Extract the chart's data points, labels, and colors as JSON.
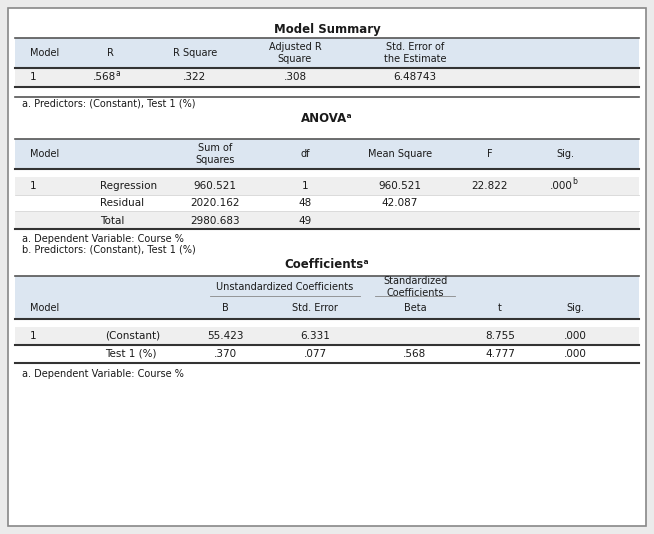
{
  "bg_color": "#ebebeb",
  "table_bg": "#ffffff",
  "header_bg": "#dce6f1",
  "row_shaded": "#efefef",
  "border_color": "#888888",
  "title_fontsize": 8.5,
  "header_fontsize": 7,
  "data_fontsize": 7.5,
  "note_fontsize": 7,
  "model_summary": {
    "title": "Model Summary",
    "note": "a. Predictors: (Constant), Test 1 (%)"
  },
  "anova": {
    "title": "ANOVAᵃ",
    "notes": [
      "a. Dependent Variable: Course %",
      "b. Predictors: (Constant), Test 1 (%)"
    ]
  },
  "coefficients": {
    "title": "Coefficientsᵃ",
    "note": "a. Dependent Variable: Course %"
  }
}
